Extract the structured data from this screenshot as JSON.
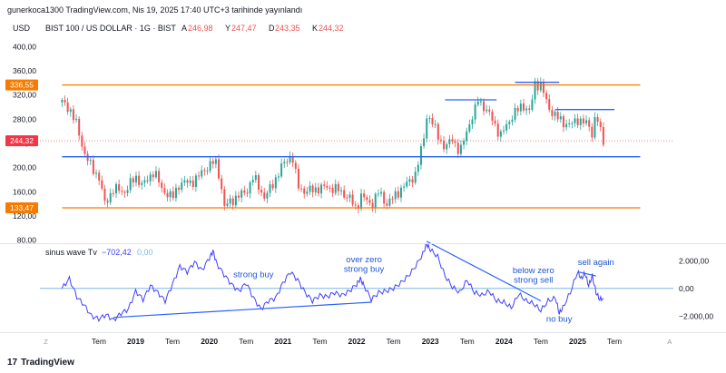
{
  "header": {
    "published_text": "gunerkoca1300 TradingView.com, Nis 19, 2025 17:40 UTC+3 tarihinde yayınlandı"
  },
  "footer": {
    "logo_text": "TradingView",
    "logo_mark": "17"
  },
  "colors": {
    "orange": "#f57c00",
    "blue": "#2962ff",
    "indicator": "#4040ff",
    "zero_line": "#7fb6e8",
    "up_candle": "#26a69a",
    "down_candle": "#ef5350",
    "price_tag": "#f23645",
    "annotation": "#1e55d6",
    "axis_text": "#131722"
  },
  "chart_data": [
    {
      "type": "candlestick",
      "title": "BIST 100 / US DOLLAR · 1G · BIST",
      "currency": "USD",
      "ohlc_labels": {
        "A": "246,98",
        "Y": "247,47",
        "D": "243,35",
        "K": "244,32"
      },
      "y_ticks": [
        "400,00",
        "360,00",
        "320,00",
        "280,00",
        "240,00",
        "200,00",
        "160,00",
        "120,00",
        "80,00"
      ],
      "y_tick_values": [
        400,
        360,
        320,
        280,
        240,
        200,
        160,
        120,
        80
      ],
      "ylim": [
        75,
        420
      ],
      "price_labels": [
        {
          "text": "336,55",
          "value": 336.55,
          "color": "orange"
        },
        {
          "text": "244,32",
          "value": 244.32,
          "color": "price_tag"
        },
        {
          "text": "133,47",
          "value": 133.47,
          "color": "orange"
        }
      ],
      "horizontal_lines": [
        {
          "value": 336.55,
          "color": "orange",
          "x_from": 2018.0,
          "x_to": 2025.85
        },
        {
          "value": 133.47,
          "color": "orange",
          "x_from": 2018.0,
          "x_to": 2025.85
        },
        {
          "value": 218,
          "color": "blue",
          "x_from": 2018.0,
          "x_to": 2025.85
        },
        {
          "value": 312,
          "color": "blue",
          "x_from": 2023.2,
          "x_to": 2023.9
        },
        {
          "value": 341,
          "color": "blue",
          "x_from": 2024.15,
          "x_to": 2024.75
        },
        {
          "value": 296,
          "color": "blue",
          "x_from": 2024.7,
          "x_to": 2025.5
        }
      ],
      "x_ticks": [
        "Z",
        "Tem",
        "2019",
        "Tem",
        "2020",
        "Tem",
        "2021",
        "Tem",
        "2022",
        "Tem",
        "2023",
        "Tem",
        "2024",
        "Tem",
        "2025",
        "Tem",
        "A"
      ],
      "x_tick_values": [
        2017.78,
        2018.5,
        2019.0,
        2019.5,
        2020.0,
        2020.5,
        2021.0,
        2021.5,
        2022.0,
        2022.5,
        2023.0,
        2023.5,
        2024.0,
        2024.5,
        2025.0,
        2025.5,
        2026.25
      ],
      "xlim": [
        2017.7,
        2026.3
      ],
      "price_path": [
        [
          2018.0,
          308
        ],
        [
          2018.1,
          298
        ],
        [
          2018.2,
          270
        ],
        [
          2018.3,
          225
        ],
        [
          2018.4,
          200
        ],
        [
          2018.5,
          185
        ],
        [
          2018.58,
          140
        ],
        [
          2018.7,
          165
        ],
        [
          2018.85,
          160
        ],
        [
          2019.0,
          185
        ],
        [
          2019.1,
          170
        ],
        [
          2019.25,
          195
        ],
        [
          2019.35,
          165
        ],
        [
          2019.5,
          150
        ],
        [
          2019.6,
          175
        ],
        [
          2019.75,
          175
        ],
        [
          2019.85,
          185
        ],
        [
          2020.0,
          205
        ],
        [
          2020.08,
          210
        ],
        [
          2020.15,
          180
        ],
        [
          2020.2,
          135
        ],
        [
          2020.35,
          150
        ],
        [
          2020.5,
          160
        ],
        [
          2020.6,
          185
        ],
        [
          2020.75,
          150
        ],
        [
          2020.85,
          170
        ],
        [
          2021.0,
          205
        ],
        [
          2021.12,
          222
        ],
        [
          2021.2,
          170
        ],
        [
          2021.3,
          160
        ],
        [
          2021.45,
          165
        ],
        [
          2021.6,
          168
        ],
        [
          2021.75,
          163
        ],
        [
          2021.9,
          150
        ],
        [
          2022.0,
          130
        ],
        [
          2022.05,
          155
        ],
        [
          2022.2,
          138
        ],
        [
          2022.3,
          160
        ],
        [
          2022.4,
          140
        ],
        [
          2022.5,
          150
        ],
        [
          2022.6,
          165
        ],
        [
          2022.7,
          175
        ],
        [
          2022.8,
          190
        ],
        [
          2022.9,
          240
        ],
        [
          2022.95,
          285
        ],
        [
          2023.0,
          280
        ],
        [
          2023.1,
          255
        ],
        [
          2023.2,
          230
        ],
        [
          2023.3,
          250
        ],
        [
          2023.4,
          222
        ],
        [
          2023.5,
          265
        ],
        [
          2023.6,
          290
        ],
        [
          2023.65,
          315
        ],
        [
          2023.75,
          295
        ],
        [
          2023.85,
          280
        ],
        [
          2023.95,
          250
        ],
        [
          2024.05,
          275
        ],
        [
          2024.15,
          290
        ],
        [
          2024.25,
          305
        ],
        [
          2024.35,
          290
        ],
        [
          2024.42,
          340
        ],
        [
          2024.5,
          335
        ],
        [
          2024.55,
          320
        ],
        [
          2024.6,
          300
        ],
        [
          2024.7,
          285
        ],
        [
          2024.8,
          275
        ],
        [
          2024.9,
          270
        ],
        [
          2025.0,
          280
        ],
        [
          2025.08,
          275
        ],
        [
          2025.15,
          270
        ],
        [
          2025.2,
          255
        ],
        [
          2025.25,
          292
        ],
        [
          2025.3,
          262
        ],
        [
          2025.35,
          244
        ]
      ]
    },
    {
      "type": "line",
      "title": "sinus wave Tv",
      "title_values": [
        {
          "text": "−702,42",
          "color": "indicator"
        },
        {
          "text": "0,00",
          "color": "zero_line"
        }
      ],
      "y_ticks": [
        "2.000,00",
        "0,00",
        "−2.000,00"
      ],
      "y_tick_values": [
        2000,
        0,
        -2000
      ],
      "ylim": [
        -2900,
        3000
      ],
      "zero_line": 0,
      "series": [
        {
          "color": "indicator",
          "points": [
            [
              2018.0,
              0
            ],
            [
              2018.1,
              700
            ],
            [
              2018.2,
              -600
            ],
            [
              2018.3,
              -1200
            ],
            [
              2018.4,
              -2000
            ],
            [
              2018.5,
              -2200
            ],
            [
              2018.6,
              -1900
            ],
            [
              2018.7,
              -2300
            ],
            [
              2018.8,
              -1800
            ],
            [
              2018.9,
              -1500
            ],
            [
              2019.0,
              -200
            ],
            [
              2019.1,
              -800
            ],
            [
              2019.2,
              200
            ],
            [
              2019.3,
              -300
            ],
            [
              2019.4,
              -900
            ],
            [
              2019.5,
              300
            ],
            [
              2019.6,
              1600
            ],
            [
              2019.7,
              1200
            ],
            [
              2019.8,
              1900
            ],
            [
              2019.9,
              1300
            ],
            [
              2020.0,
              2200
            ],
            [
              2020.05,
              2700
            ],
            [
              2020.1,
              1800
            ],
            [
              2020.2,
              1000
            ],
            [
              2020.3,
              300
            ],
            [
              2020.4,
              -200
            ],
            [
              2020.5,
              400
            ],
            [
              2020.6,
              -700
            ],
            [
              2020.7,
              -1500
            ],
            [
              2020.8,
              -900
            ],
            [
              2020.9,
              -700
            ],
            [
              2021.0,
              400
            ],
            [
              2021.1,
              1200
            ],
            [
              2021.2,
              600
            ],
            [
              2021.3,
              -300
            ],
            [
              2021.4,
              -900
            ],
            [
              2021.5,
              -500
            ],
            [
              2021.6,
              -600
            ],
            [
              2021.7,
              -300
            ],
            [
              2021.8,
              -500
            ],
            [
              2021.9,
              -200
            ],
            [
              2022.0,
              300
            ],
            [
              2022.05,
              700
            ],
            [
              2022.1,
              200
            ],
            [
              2022.2,
              -800
            ],
            [
              2022.3,
              -300
            ],
            [
              2022.4,
              -200
            ],
            [
              2022.5,
              0
            ],
            [
              2022.6,
              400
            ],
            [
              2022.7,
              900
            ],
            [
              2022.8,
              1600
            ],
            [
              2022.9,
              2500
            ],
            [
              2022.95,
              3200
            ],
            [
              2023.0,
              2800
            ],
            [
              2023.1,
              2300
            ],
            [
              2023.2,
              900
            ],
            [
              2023.3,
              100
            ],
            [
              2023.4,
              -300
            ],
            [
              2023.5,
              600
            ],
            [
              2023.6,
              -300
            ],
            [
              2023.7,
              -500
            ],
            [
              2023.8,
              -200
            ],
            [
              2023.9,
              -900
            ],
            [
              2024.0,
              -1000
            ],
            [
              2024.1,
              -1400
            ],
            [
              2024.2,
              -400
            ],
            [
              2024.3,
              -900
            ],
            [
              2024.4,
              -1100
            ],
            [
              2024.5,
              -1600
            ],
            [
              2024.6,
              -900
            ],
            [
              2024.7,
              -700
            ],
            [
              2024.75,
              -1800
            ],
            [
              2024.8,
              -1400
            ],
            [
              2024.9,
              -300
            ],
            [
              2025.0,
              1200
            ],
            [
              2025.05,
              700
            ],
            [
              2025.1,
              1100
            ],
            [
              2025.15,
              200
            ],
            [
              2025.2,
              900
            ],
            [
              2025.25,
              -300
            ],
            [
              2025.3,
              -800
            ],
            [
              2025.35,
              -702
            ]
          ]
        }
      ],
      "trend_lines": [
        {
          "from": [
            2018.7,
            -2100
          ],
          "to": [
            2022.2,
            -1000
          ]
        },
        {
          "from": [
            2022.95,
            3400
          ],
          "to": [
            2024.5,
            -900
          ]
        },
        {
          "from": [
            2025.0,
            1200
          ],
          "to": [
            2025.25,
            900
          ]
        }
      ],
      "annotations": [
        {
          "text": "strong buy",
          "at": [
            2020.6,
            800
          ]
        },
        {
          "text": "over zero",
          "at": [
            2022.1,
            1900
          ]
        },
        {
          "text": "strong buy",
          "at": [
            2022.1,
            1200
          ]
        },
        {
          "text": "below zero",
          "at": [
            2024.4,
            1100
          ]
        },
        {
          "text": "strong sell",
          "at": [
            2024.4,
            400
          ]
        },
        {
          "text": "no buy",
          "at": [
            2024.75,
            -2400
          ]
        },
        {
          "text": "sell again",
          "at": [
            2025.25,
            1700
          ]
        }
      ]
    }
  ]
}
